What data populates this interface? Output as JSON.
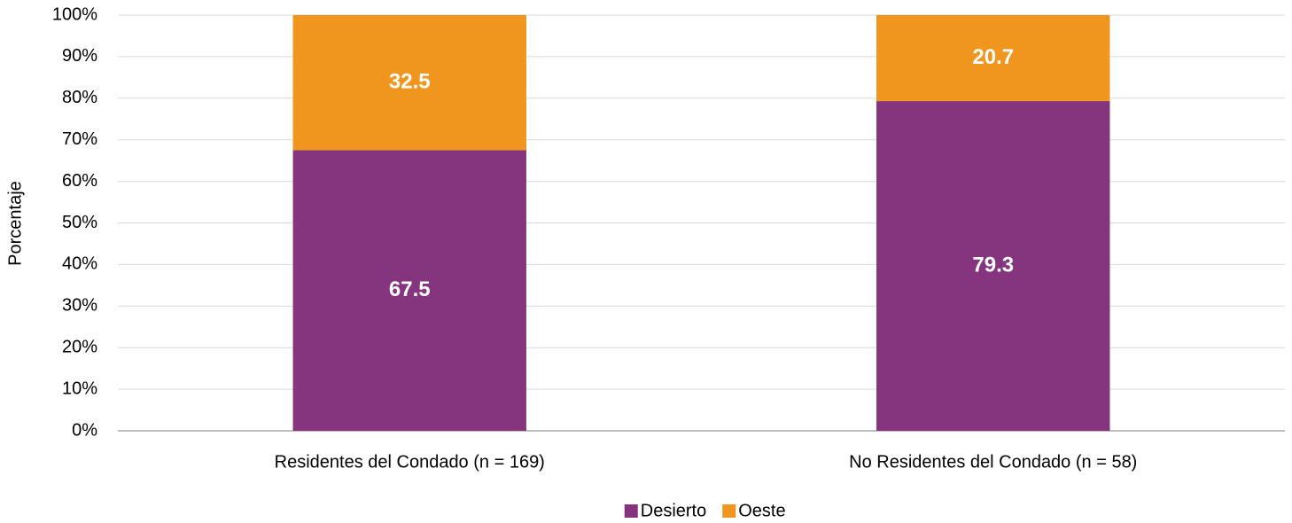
{
  "chart_data": {
    "type": "stacked_bar",
    "y_label": "Porcentaje",
    "categories": [
      "Residentes del Condado (n = 169)",
      "No Residentes del Condado (n = 58)"
    ],
    "series": [
      {
        "name": "Desierto",
        "color": "#84357e",
        "values": [
          67.5,
          79.3
        ]
      },
      {
        "name": "Oeste",
        "color": "#f0961e",
        "values": [
          32.5,
          20.7
        ]
      }
    ],
    "ylim": [
      0,
      100
    ],
    "yticks": [
      {
        "value": 0,
        "label": "0%"
      },
      {
        "value": 10,
        "label": "10%"
      },
      {
        "value": 20,
        "label": "20%"
      },
      {
        "value": 30,
        "label": "30%"
      },
      {
        "value": 40,
        "label": "40%"
      },
      {
        "value": 50,
        "label": "50%"
      },
      {
        "value": 60,
        "label": "60%"
      },
      {
        "value": 70,
        "label": "70%"
      },
      {
        "value": 80,
        "label": "80%"
      },
      {
        "value": 90,
        "label": "90%"
      },
      {
        "value": 100,
        "label": "100%"
      }
    ],
    "grid": true,
    "legend": "bottom"
  }
}
